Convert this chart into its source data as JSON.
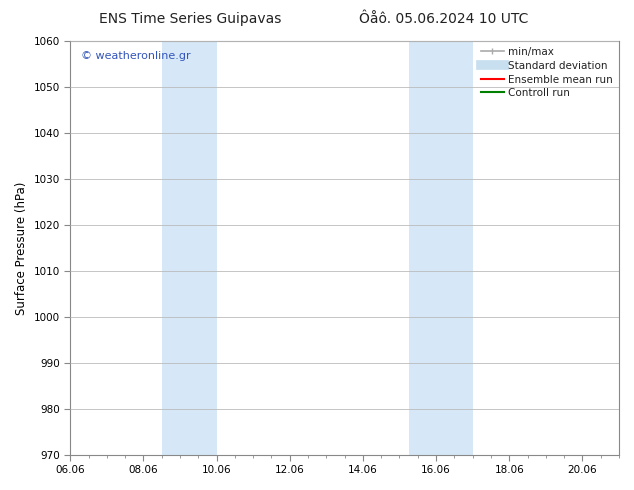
{
  "title_left": "ENS Time Series Guipavas",
  "title_right": "Ôåô. 05.06.2024 10 UTC",
  "ylabel": "Surface Pressure (hPa)",
  "ylim": [
    970,
    1060
  ],
  "yticks": [
    970,
    980,
    990,
    1000,
    1010,
    1020,
    1030,
    1040,
    1050,
    1060
  ],
  "xtick_labels": [
    "06.06",
    "08.06",
    "10.06",
    "12.06",
    "14.06",
    "16.06",
    "18.06",
    "20.06"
  ],
  "xtick_values": [
    0,
    2,
    4,
    6,
    8,
    10,
    12,
    14
  ],
  "xlim": [
    0,
    15
  ],
  "shaded_bands": [
    {
      "x_start": 2.5,
      "x_end": 4.0,
      "color": "#d6e8f7"
    },
    {
      "x_start": 9.25,
      "x_end": 11.0,
      "color": "#d6e8f7"
    }
  ],
  "watermark_text": "© weatheronline.gr",
  "watermark_color": "#3355bb",
  "legend_items": [
    {
      "label": "min/max",
      "color": "#aaaaaa",
      "lw": 1.2,
      "style": "line_with_caps"
    },
    {
      "label": "Standard deviation",
      "color": "#c8dff0",
      "lw": 7,
      "style": "line"
    },
    {
      "label": "Ensemble mean run",
      "color": "red",
      "lw": 1.5,
      "style": "line"
    },
    {
      "label": "Controll run",
      "color": "green",
      "lw": 1.5,
      "style": "line"
    }
  ],
  "bg_color": "#ffffff",
  "grid_color": "#bbbbbb",
  "title_fontsize": 10,
  "axis_label_fontsize": 8.5,
  "tick_fontsize": 7.5,
  "legend_fontsize": 7.5
}
